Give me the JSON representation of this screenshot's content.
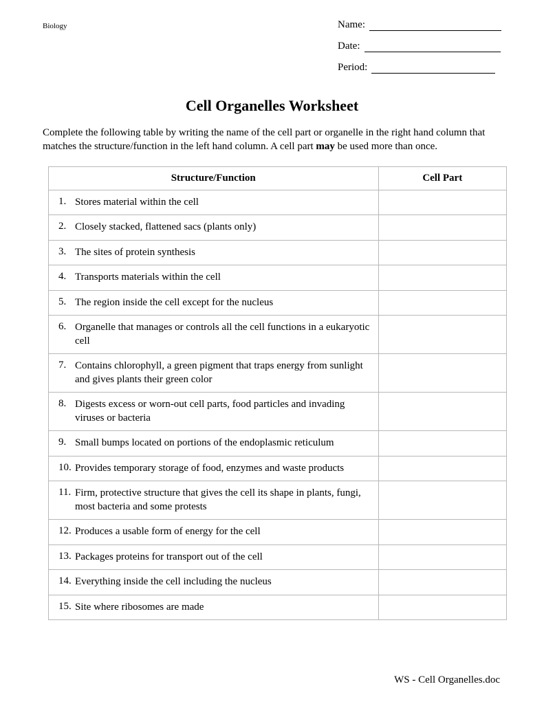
{
  "subject": "Biology",
  "fields": {
    "name_label": "Name:",
    "date_label": "Date:",
    "period_label": "Period:"
  },
  "title": "Cell Organelles Worksheet",
  "instructions_pre": "Complete the following table by writing the name of the cell part or organelle in the right hand column that matches the structure/function in the left hand column. A cell part ",
  "instructions_bold": "may",
  "instructions_post": " be used more than once.",
  "table": {
    "header_function": "Structure/Function",
    "header_part": "Cell Part",
    "rows": [
      {
        "n": "1.",
        "text": "Stores material within the cell"
      },
      {
        "n": "2.",
        "text": "Closely stacked, flattened sacs (plants only)"
      },
      {
        "n": "3.",
        "text": "The sites of protein synthesis"
      },
      {
        "n": "4.",
        "text": "Transports materials within the cell"
      },
      {
        "n": "5.",
        "text": "The region inside the cell except for the nucleus"
      },
      {
        "n": "6.",
        "text": "Organelle that manages or controls all the cell functions in a eukaryotic cell"
      },
      {
        "n": "7.",
        "text": "Contains chlorophyll, a green pigment that traps energy from sunlight and gives plants their green color"
      },
      {
        "n": "8.",
        "text": "Digests excess or worn-out cell parts, food particles and invading viruses or bacteria"
      },
      {
        "n": "9.",
        "text": "Small bumps located on portions of the endoplasmic reticulum"
      },
      {
        "n": "10.",
        "text": "Provides temporary storage of food, enzymes and waste products"
      },
      {
        "n": "11.",
        "text": "Firm, protective structure that gives the cell its shape in plants, fungi, most bacteria and some protests"
      },
      {
        "n": "12.",
        "text": "Produces a usable form of energy for the cell"
      },
      {
        "n": "13.",
        "text": "Packages proteins for transport out of the cell"
      },
      {
        "n": "14.",
        "text": "Everything inside the cell including the nucleus"
      },
      {
        "n": "15.",
        "text": "Site where ribosomes are made"
      }
    ]
  },
  "footer": "WS - Cell Organelles.doc",
  "style": {
    "blank_widths": {
      "name": 192,
      "date": 198,
      "period": 180
    }
  }
}
